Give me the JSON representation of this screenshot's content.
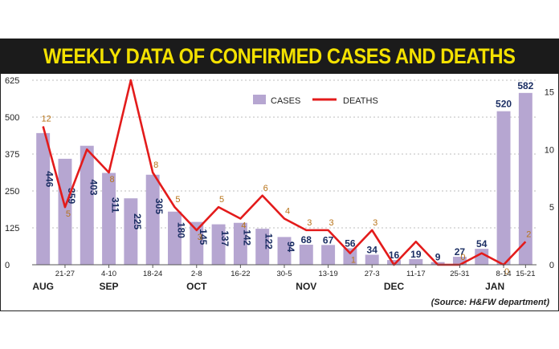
{
  "chart_data": {
    "type": "bar+line",
    "title": "WEEKLY DATA OF CONFIRMED CASES AND DEATHS",
    "source": "(Source: H&FW department)",
    "legend": [
      {
        "name": "CASES",
        "color": "#b6a6d1"
      },
      {
        "name": "DEATHS",
        "color": "#e31b1b"
      }
    ],
    "y_left_ticks": [
      "0",
      "125",
      "250",
      "375",
      "500",
      "625"
    ],
    "y_left_range": [
      0,
      625
    ],
    "y_right_ticks": [
      "0",
      "5",
      "10",
      "15"
    ],
    "y_right_range": [
      0,
      16
    ],
    "x_labels": [
      {
        "i": 1,
        "text": "21-27"
      },
      {
        "i": 3,
        "text": "4-10"
      },
      {
        "i": 5,
        "text": "18-24"
      },
      {
        "i": 7,
        "text": "2-8"
      },
      {
        "i": 9,
        "text": "16-22"
      },
      {
        "i": 11,
        "text": "30-5"
      },
      {
        "i": 13,
        "text": "13-19"
      },
      {
        "i": 15,
        "text": "27-3"
      },
      {
        "i": 17,
        "text": "11-17"
      },
      {
        "i": 19,
        "text": "25-31"
      },
      {
        "i": 21,
        "text": "8-14"
      },
      {
        "i": 22,
        "text": "15-21"
      }
    ],
    "months": [
      {
        "i": 0,
        "text": "AUG"
      },
      {
        "i": 3,
        "text": "SEP"
      },
      {
        "i": 7,
        "text": "OCT"
      },
      {
        "i": 12,
        "text": "NOV"
      },
      {
        "i": 16,
        "text": "DEC"
      },
      {
        "i": 20.6,
        "text": "JAN"
      }
    ],
    "cases": [
      446,
      359,
      403,
      311,
      225,
      305,
      180,
      145,
      137,
      142,
      122,
      94,
      68,
      67,
      56,
      34,
      16,
      19,
      9,
      27,
      54,
      520,
      582
    ],
    "deaths": [
      12,
      5,
      10,
      8,
      16,
      8,
      5,
      3,
      5,
      4,
      6,
      4,
      3,
      3,
      1,
      3,
      0,
      2,
      0,
      0,
      1,
      0,
      2
    ],
    "death_labels_shown": [
      true,
      true,
      false,
      true,
      false,
      true,
      true,
      true,
      true,
      true,
      true,
      true,
      true,
      true,
      true,
      true,
      false,
      false,
      false,
      true,
      false,
      true,
      true
    ],
    "colors": {
      "bar": "#b6a6d1",
      "line": "#e31b1b",
      "title_bg": "#1b1b1b",
      "title_text": "#f3e100",
      "bar_label": "#1b2e63",
      "death_label": "#b8741a"
    }
  }
}
